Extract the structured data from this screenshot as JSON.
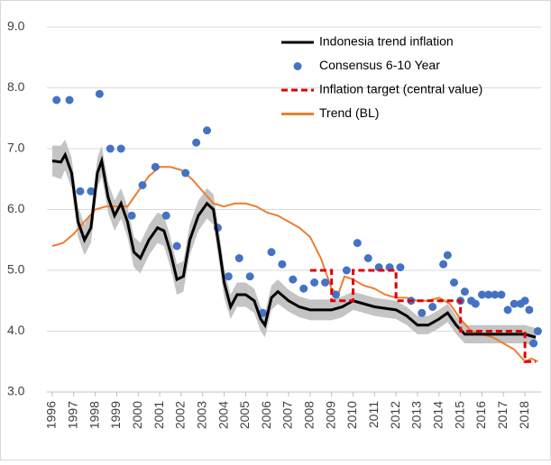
{
  "chart_data": {
    "type": "line",
    "ylim": [
      3,
      9
    ],
    "yticks": [
      {
        "value": 3,
        "label": "3.0"
      },
      {
        "value": 4,
        "label": "4.0"
      },
      {
        "value": 5,
        "label": "5.0"
      },
      {
        "value": 6,
        "label": "6.0"
      },
      {
        "value": 7,
        "label": "7.0"
      },
      {
        "value": 8,
        "label": "8.0"
      },
      {
        "value": 9,
        "label": "9.0"
      }
    ],
    "xlim": [
      1995.75,
      2018.75
    ],
    "xticks": [
      1996,
      1997,
      1998,
      1999,
      2000,
      2001,
      2002,
      2003,
      2004,
      2005,
      2006,
      2007,
      2008,
      2009,
      2010,
      2011,
      2012,
      2013,
      2014,
      2015,
      2016,
      2017,
      2018
    ],
    "grid": true,
    "legend": "top-right",
    "band": {
      "color": "#c4c4c4",
      "x": [
        1996.0,
        1996.4,
        1996.6,
        1996.9,
        1997.2,
        1997.5,
        1997.8,
        1998.1,
        1998.3,
        1998.6,
        1998.9,
        1999.2,
        1999.5,
        1999.8,
        2000.1,
        2000.5,
        2000.9,
        2001.2,
        2001.5,
        2001.8,
        2002.1,
        2002.4,
        2002.8,
        2003.2,
        2003.5,
        2003.8,
        2004.0,
        2004.3,
        2004.6,
        2005.0,
        2005.4,
        2005.7,
        2005.9,
        2006.2,
        2006.5,
        2007.0,
        2007.5,
        2008.0,
        2009.0,
        2009.5,
        2010.0,
        2010.5,
        2011.0,
        2012.0,
        2012.5,
        2013.0,
        2013.5,
        2014.0,
        2014.4,
        2014.8,
        2015.2,
        2016.0,
        2017.0,
        2018.0,
        2018.5
      ],
      "upper": [
        7.05,
        7.05,
        7.15,
        6.85,
        6.05,
        5.75,
        5.95,
        6.85,
        7.05,
        6.45,
        6.15,
        6.35,
        6.05,
        5.55,
        5.45,
        5.75,
        5.95,
        5.9,
        5.55,
        5.1,
        5.15,
        5.75,
        6.15,
        6.35,
        6.25,
        5.55,
        5.05,
        4.6,
        4.8,
        4.8,
        4.7,
        4.4,
        4.3,
        4.75,
        4.85,
        4.68,
        4.57,
        4.52,
        4.52,
        4.57,
        4.65,
        4.6,
        4.55,
        4.5,
        4.4,
        4.25,
        4.25,
        4.35,
        4.45,
        4.25,
        4.1,
        4.1,
        4.1,
        4.1,
        4.05
      ],
      "lower": [
        6.55,
        6.5,
        6.65,
        6.35,
        5.55,
        5.25,
        5.45,
        6.35,
        6.55,
        5.95,
        5.65,
        5.85,
        5.55,
        5.05,
        4.95,
        5.25,
        5.45,
        5.4,
        5.05,
        4.6,
        4.65,
        5.25,
        5.65,
        5.85,
        5.75,
        5.05,
        4.55,
        4.2,
        4.4,
        4.4,
        4.3,
        4.0,
        3.9,
        4.35,
        4.45,
        4.32,
        4.23,
        4.18,
        4.18,
        4.23,
        4.35,
        4.3,
        4.25,
        4.2,
        4.1,
        3.95,
        3.95,
        4.05,
        4.15,
        3.95,
        3.8,
        3.8,
        3.8,
        3.8,
        3.75
      ]
    },
    "series": [
      {
        "name": "Indonesia trend inflation",
        "color": "#000000",
        "kind": "line",
        "x": [
          1996.0,
          1996.4,
          1996.6,
          1996.9,
          1997.2,
          1997.5,
          1997.8,
          1998.1,
          1998.3,
          1998.6,
          1998.9,
          1999.2,
          1999.5,
          1999.8,
          2000.1,
          2000.5,
          2000.9,
          2001.2,
          2001.5,
          2001.8,
          2002.1,
          2002.4,
          2002.8,
          2003.2,
          2003.5,
          2003.8,
          2004.0,
          2004.3,
          2004.6,
          2005.0,
          2005.4,
          2005.7,
          2005.9,
          2006.2,
          2006.5,
          2007.0,
          2007.5,
          2008.0,
          2009.0,
          2009.5,
          2010.0,
          2010.5,
          2011.0,
          2012.0,
          2012.5,
          2013.0,
          2013.5,
          2014.0,
          2014.4,
          2014.8,
          2015.2,
          2016.0,
          2017.0,
          2018.0,
          2018.5
        ],
        "values": [
          6.8,
          6.78,
          6.9,
          6.6,
          5.8,
          5.5,
          5.7,
          6.6,
          6.8,
          6.2,
          5.9,
          6.1,
          5.8,
          5.3,
          5.2,
          5.5,
          5.7,
          5.65,
          5.3,
          4.85,
          4.9,
          5.5,
          5.9,
          6.1,
          6.0,
          5.3,
          4.8,
          4.4,
          4.6,
          4.6,
          4.5,
          4.2,
          4.1,
          4.55,
          4.65,
          4.5,
          4.4,
          4.35,
          4.35,
          4.4,
          4.5,
          4.45,
          4.4,
          4.35,
          4.25,
          4.1,
          4.1,
          4.2,
          4.3,
          4.1,
          3.95,
          3.95,
          3.95,
          3.95,
          3.9
        ]
      },
      {
        "name": "Consensus 6-10 Year",
        "color": "#4472c4",
        "kind": "scatter",
        "x": [
          1996.2,
          1996.8,
          1997.3,
          1997.8,
          1998.2,
          1998.7,
          1999.2,
          1999.7,
          2000.2,
          2000.8,
          2001.3,
          2001.8,
          2002.2,
          2002.7,
          2003.2,
          2003.7,
          2004.2,
          2004.7,
          2005.2,
          2005.8,
          2006.2,
          2006.7,
          2007.2,
          2007.7,
          2008.2,
          2008.7,
          2009.2,
          2009.7,
          2010.2,
          2010.7,
          2011.2,
          2011.7,
          2012.2,
          2012.7,
          2013.2,
          2013.7,
          2014.2,
          2014.4,
          2014.7,
          2015.0,
          2015.2,
          2015.5,
          2015.7,
          2016.0,
          2016.3,
          2016.6,
          2016.9,
          2017.2,
          2017.5,
          2017.8,
          2018.0,
          2018.2,
          2018.4,
          2018.6
        ],
        "values": [
          7.8,
          7.8,
          6.3,
          6.3,
          7.9,
          7.0,
          7.0,
          5.9,
          6.4,
          6.7,
          5.9,
          5.4,
          6.6,
          7.1,
          7.3,
          5.7,
          4.9,
          5.2,
          4.9,
          4.3,
          5.3,
          5.1,
          4.85,
          4.7,
          4.8,
          4.8,
          4.6,
          5.0,
          5.45,
          5.2,
          5.05,
          5.05,
          5.05,
          4.5,
          4.3,
          4.4,
          5.1,
          5.25,
          4.8,
          4.5,
          4.65,
          4.5,
          4.45,
          4.6,
          4.6,
          4.6,
          4.6,
          4.35,
          4.45,
          4.45,
          4.5,
          4.35,
          3.8,
          4.0
        ]
      },
      {
        "name": "Inflation target (central value)",
        "color": "#e00000",
        "kind": "dashed",
        "x": [
          2008.0,
          2009.0,
          2009.0,
          2010.0,
          2010.0,
          2012.0,
          2012.0,
          2015.0,
          2015.0,
          2018.0,
          2018.0,
          2018.5
        ],
        "values": [
          5.0,
          5.0,
          4.5,
          4.5,
          5.0,
          5.0,
          4.5,
          4.5,
          4.0,
          4.0,
          3.5,
          3.5
        ]
      },
      {
        "name": "Trend (BL)",
        "color": "#ed7d31",
        "kind": "line",
        "x": [
          1996.0,
          1996.5,
          1997.0,
          1997.5,
          1998.0,
          1998.5,
          1999.0,
          1999.5,
          2000.0,
          2000.5,
          2001.0,
          2001.5,
          2002.0,
          2002.5,
          2003.0,
          2003.5,
          2004.0,
          2004.5,
          2005.0,
          2005.5,
          2006.0,
          2006.5,
          2007.0,
          2007.5,
          2008.0,
          2008.5,
          2009.0,
          2009.3,
          2009.6,
          2010.0,
          2010.5,
          2011.0,
          2011.5,
          2012.0,
          2012.5,
          2013.0,
          2013.5,
          2014.0,
          2014.5,
          2015.0,
          2015.5,
          2016.0,
          2016.5,
          2017.0,
          2017.5,
          2018.0,
          2018.3,
          2018.6
        ],
        "values": [
          5.4,
          5.45,
          5.6,
          5.8,
          6.0,
          6.05,
          6.05,
          6.05,
          6.3,
          6.55,
          6.7,
          6.7,
          6.65,
          6.5,
          6.3,
          6.1,
          6.05,
          6.1,
          6.1,
          6.05,
          5.95,
          5.9,
          5.8,
          5.7,
          5.55,
          5.2,
          4.7,
          4.6,
          4.9,
          4.85,
          4.75,
          4.7,
          4.6,
          4.55,
          4.55,
          4.5,
          4.5,
          4.55,
          4.45,
          4.2,
          4.0,
          3.95,
          3.9,
          3.8,
          3.7,
          3.5,
          3.55,
          3.5
        ]
      }
    ]
  }
}
